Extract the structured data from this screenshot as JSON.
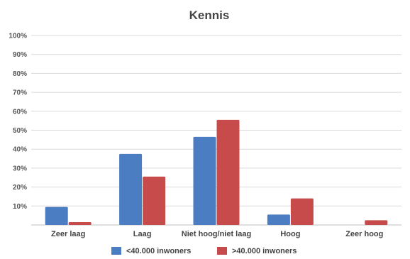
{
  "chart_data": {
    "type": "bar",
    "title": "Kennis",
    "categories": [
      "Zeer laag",
      "Laag",
      "Niet hoog/niet laag",
      "Hoog",
      "Zeer hoog"
    ],
    "series": [
      {
        "name": "<40.000 inwoners",
        "color": "#4a7dc2",
        "values": [
          9.5,
          37.5,
          46.5,
          5.5,
          0
        ]
      },
      {
        "name": ">40.000 inwoners",
        "color": "#c84b4b",
        "values": [
          1.5,
          25.5,
          55.5,
          14.0,
          2.5
        ]
      }
    ],
    "y_ticks": [
      "10%",
      "20%",
      "30%",
      "40%",
      "50%",
      "60%",
      "70%",
      "80%",
      "90%",
      "100%"
    ],
    "ylim": [
      0,
      100
    ],
    "xlabel": "",
    "ylabel": "",
    "grid": true,
    "legend_position": "bottom"
  }
}
